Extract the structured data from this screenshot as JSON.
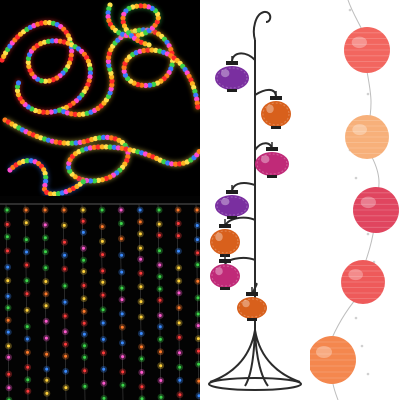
{
  "image": {
    "panels": [
      {
        "name": "rope-light-panel",
        "colors": [
          "#ff2a2a",
          "#ffb020",
          "#ffe14a",
          "#3dd04a",
          "#3a7bff",
          "#ff4ad0",
          "#ff7a1a"
        ]
      },
      {
        "name": "curtain-light-panel",
        "colors": [
          "#ff3b3b",
          "#ffd23a",
          "#3bd64a",
          "#3a8bff",
          "#ff7a2a",
          "#ff5ad0"
        ]
      },
      {
        "name": "lantern-stand-panel",
        "lantern_colors": [
          "#7a2fa0",
          "#d8601c",
          "#c02a78",
          "#7a2fa0",
          "#d8601c",
          "#c02a78",
          "#d8601c"
        ]
      },
      {
        "name": "paper-lantern-string-panel",
        "lantern_colors": [
          "#f2665f",
          "#f7b07a",
          "#e0455f",
          "#ee5a5a",
          "#f4874e"
        ]
      }
    ]
  }
}
